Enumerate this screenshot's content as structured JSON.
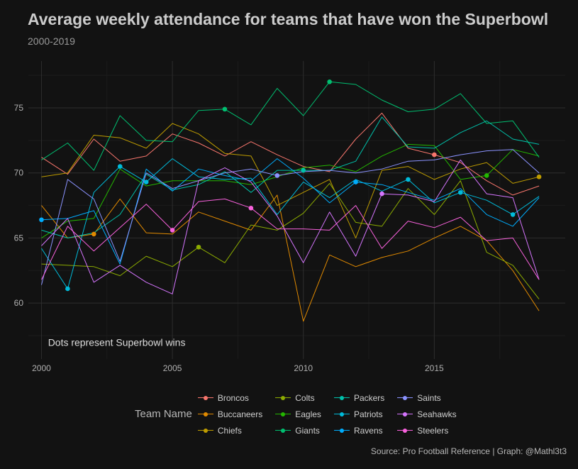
{
  "title": "Average weekly attendance for teams that have won the Superbowl",
  "subtitle": "2000-2019",
  "caption": "Source: Pro Football Reference | Graph: @Mathl3t3",
  "annotation": "Dots represent Superbowl wins",
  "legend": {
    "title": "Team Name",
    "placement": "bottom"
  },
  "colors": {
    "background": "#121212",
    "grid": "#2e2e2e",
    "text": "#cccccc"
  },
  "chart_data": {
    "type": "line",
    "xlim": [
      1999.5,
      2020.0
    ],
    "ylim": [
      55.7,
      78.6
    ],
    "x_ticks": [
      2000,
      2005,
      2010,
      2015
    ],
    "y_ticks": [
      60,
      65,
      70,
      75
    ],
    "grid": true,
    "xlabel": "",
    "ylabel": "",
    "x": [
      2000,
      2001,
      2002,
      2003,
      2004,
      2005,
      2006,
      2007,
      2008,
      2009,
      2010,
      2011,
      2012,
      2013,
      2014,
      2015,
      2016,
      2017,
      2018,
      2019
    ],
    "series": [
      {
        "name": "Broncos",
        "color": "#F8766D",
        "wins": [
          2015
        ],
        "values": [
          71.2,
          69.9,
          72.6,
          70.9,
          71.3,
          73.0,
          72.3,
          71.3,
          72.4,
          71.4,
          70.5,
          70.1,
          72.6,
          74.6,
          71.9,
          71.4,
          70.8,
          69.4,
          68.3,
          69.0
        ]
      },
      {
        "name": "Buccaneers",
        "color": "#E18A00",
        "wins": [
          2002
        ],
        "values": [
          67.5,
          65.0,
          65.3,
          68.0,
          65.4,
          65.3,
          67.0,
          66.3,
          65.6,
          68.3,
          58.6,
          63.7,
          62.8,
          63.5,
          64.0,
          65.0,
          65.9,
          64.8,
          62.5,
          59.4
        ]
      },
      {
        "name": "Chiefs",
        "color": "#BE9C00",
        "wins": [
          2019
        ],
        "values": [
          69.7,
          70.0,
          72.9,
          72.7,
          71.9,
          73.8,
          73.0,
          71.5,
          71.3,
          67.5,
          68.5,
          69.5,
          65.0,
          70.2,
          70.5,
          69.5,
          70.3,
          70.8,
          69.2,
          69.7
        ]
      },
      {
        "name": "Colts",
        "color": "#8CAB00",
        "wins": [
          2006
        ],
        "values": [
          63.0,
          62.9,
          62.8,
          62.1,
          63.6,
          62.8,
          64.3,
          63.1,
          66.0,
          65.6,
          66.9,
          69.2,
          66.2,
          65.9,
          68.8,
          66.8,
          69.4,
          63.9,
          62.9,
          60.3
        ]
      },
      {
        "name": "Eagles",
        "color": "#24B700",
        "wins": [
          2017
        ],
        "values": [
          65.0,
          66.3,
          66.5,
          70.3,
          69.0,
          69.4,
          69.4,
          69.4,
          69.1,
          69.7,
          70.4,
          70.6,
          70.1,
          71.3,
          72.2,
          72.1,
          69.5,
          69.8,
          71.8,
          71.3
        ]
      },
      {
        "name": "Giants",
        "color": "#00BE70",
        "wins": [
          2007,
          2011
        ],
        "values": [
          71.0,
          72.3,
          70.2,
          74.4,
          72.5,
          72.4,
          74.8,
          74.9,
          73.7,
          76.5,
          74.4,
          77.0,
          76.8,
          75.6,
          74.7,
          74.9,
          76.1,
          73.8,
          74.0,
          71.2
        ]
      },
      {
        "name": "Packers",
        "color": "#00C1AB",
        "wins": [
          2010
        ],
        "values": [
          65.6,
          65.0,
          65.4,
          66.8,
          69.9,
          68.7,
          69.1,
          70.1,
          68.5,
          70.2,
          70.2,
          70.2,
          70.9,
          74.3,
          72.0,
          71.9,
          73.1,
          74.0,
          72.6,
          72.2
        ]
      },
      {
        "name": "Patriots",
        "color": "#00BBDA",
        "wins": [
          2001,
          2003,
          2004,
          2014,
          2016,
          2018
        ],
        "values": [
          64.2,
          61.1,
          68.5,
          70.5,
          69.3,
          71.1,
          69.7,
          69.5,
          69.6,
          66.8,
          69.3,
          68.1,
          69.5,
          68.6,
          69.5,
          67.7,
          68.5,
          67.9,
          66.8,
          68.2
        ]
      },
      {
        "name": "Ravens",
        "color": "#00ACFC",
        "wins": [
          2000,
          2012
        ],
        "values": [
          66.4,
          66.5,
          67.1,
          63.0,
          70.3,
          68.6,
          70.3,
          69.8,
          69.4,
          71.1,
          69.6,
          67.7,
          69.3,
          69.1,
          68.5,
          67.9,
          68.8,
          66.8,
          65.9,
          68.1
        ]
      },
      {
        "name": "Saints",
        "color": "#8B93FF",
        "wins": [
          2009
        ],
        "values": [
          61.4,
          69.5,
          68.0,
          63.2,
          70.0,
          68.8,
          69.4,
          70.0,
          70.3,
          69.8,
          70.1,
          70.2,
          70.0,
          70.3,
          70.9,
          71.0,
          71.4,
          71.7,
          71.8,
          70.0
        ]
      },
      {
        "name": "Seahawks",
        "color": "#D575FE",
        "wins": [
          2013
        ],
        "values": [
          64.4,
          66.5,
          61.6,
          62.9,
          61.6,
          60.7,
          69.4,
          70.4,
          69.3,
          66.7,
          63.1,
          67.0,
          63.6,
          68.4,
          68.3,
          67.8,
          71.0,
          68.4,
          68.1,
          61.8
        ]
      },
      {
        "name": "Steelers",
        "color": "#F962DD",
        "wins": [
          2005,
          2008
        ],
        "values": [
          61.8,
          65.9,
          64.0,
          65.8,
          67.6,
          65.6,
          67.8,
          68.0,
          67.3,
          65.7,
          65.7,
          65.6,
          67.5,
          64.2,
          66.3,
          65.8,
          66.6,
          64.8,
          65.0,
          61.8
        ]
      }
    ]
  }
}
